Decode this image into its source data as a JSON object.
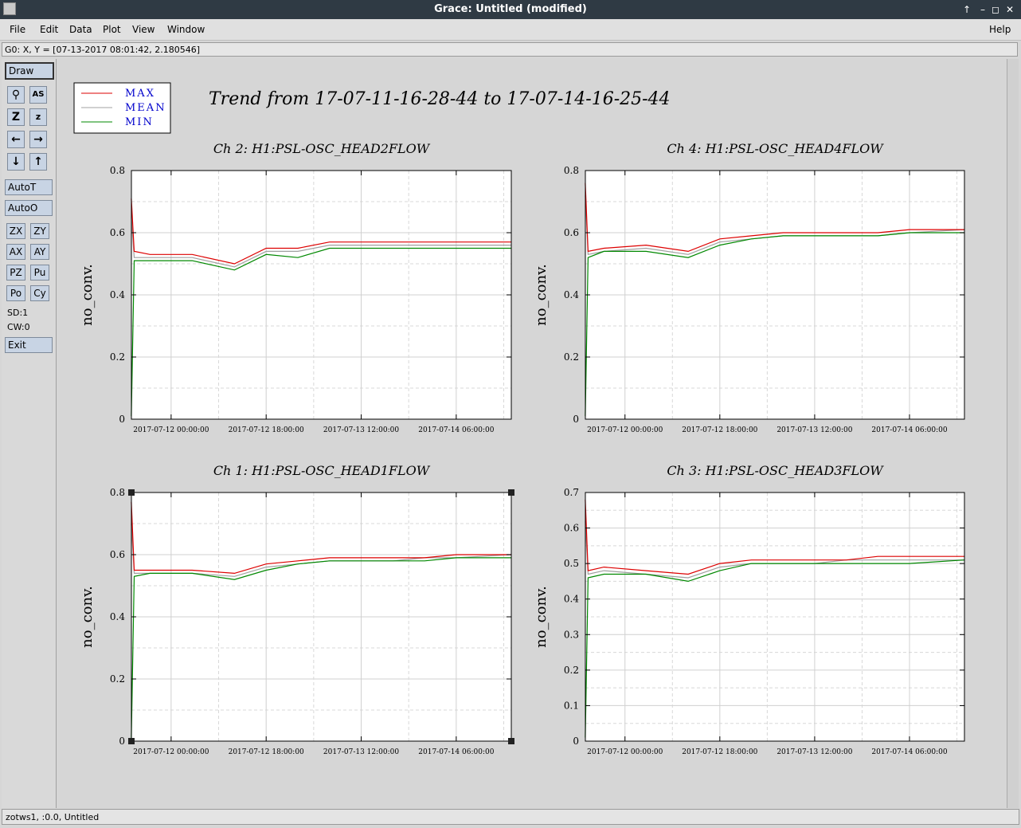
{
  "window": {
    "title": "Grace: Untitled (modified)",
    "controls": [
      "↑",
      "–",
      "◻",
      "✕"
    ]
  },
  "menubar": {
    "items": [
      {
        "label": "File"
      },
      {
        "label": "Edit"
      },
      {
        "label": "Data"
      },
      {
        "label": "Plot"
      },
      {
        "label": "View"
      },
      {
        "label": "Window"
      }
    ],
    "help": "Help"
  },
  "locator": "G0: X, Y = [07-13-2017 08:01:42, 2.180546]",
  "toolbar": {
    "draw": "Draw",
    "autot": "AutoT",
    "autoo": "AutoO",
    "zx": "ZX",
    "zy": "ZY",
    "ax": "AX",
    "ay": "AY",
    "pz": "PZ",
    "pu": "Pu",
    "po": "Po",
    "cy": "Cy",
    "sd": "SD:1",
    "cw": "CW:0",
    "exit": "Exit",
    "icons": [
      "zoom-icon",
      "autoscale-text-icon",
      "zoom-in-icon",
      "zoom-out-icon",
      "left-arrow-icon",
      "right-arrow-icon",
      "down-arrow-icon",
      "up-arrow-icon"
    ]
  },
  "statusbar": "zotws1, :0.0, Untitled",
  "canvas": {
    "title": "Trend from 17-07-11-16-28-44 to 17-07-14-16-25-44",
    "legend": [
      {
        "name": "MAX",
        "color": "#dd0000"
      },
      {
        "name": "MEAN",
        "color": "#a0a0a0"
      },
      {
        "name": "MIN",
        "color": "#008800"
      }
    ]
  },
  "chart_data": [
    {
      "type": "line",
      "title": "Ch 2: H1:PSL-OSC_HEAD2FLOW",
      "ylabel": "no_conv.",
      "ylim": [
        0,
        0.8
      ],
      "yticks": [
        "0",
        "0.2",
        "0.4",
        "0.6",
        "0.8"
      ],
      "xticks": [
        "2017-07-12 00:00:00",
        "2017-07-12 18:00:00",
        "2017-07-13 12:00:00",
        "2017-07-14 06:00:00"
      ],
      "x": [
        "2017-07-11 16:28",
        "2017-07-11 17:00",
        "2017-07-11 20:00",
        "2017-07-12 04:00",
        "2017-07-12 12:00",
        "2017-07-12 18:00",
        "2017-07-13 00:00",
        "2017-07-13 06:00",
        "2017-07-13 12:00",
        "2017-07-13 18:00",
        "2017-07-14 00:00",
        "2017-07-14 06:00",
        "2017-07-14 16:25"
      ],
      "series": [
        {
          "name": "MAX",
          "values": [
            0.71,
            0.54,
            0.53,
            0.53,
            0.5,
            0.55,
            0.55,
            0.57,
            0.57,
            0.57,
            0.57,
            0.57,
            0.57
          ]
        },
        {
          "name": "MEAN",
          "values": [
            0.65,
            0.52,
            0.52,
            0.52,
            0.49,
            0.54,
            0.54,
            0.56,
            0.56,
            0.56,
            0.56,
            0.56,
            0.56
          ]
        },
        {
          "name": "MIN",
          "values": [
            0.01,
            0.51,
            0.51,
            0.51,
            0.48,
            0.53,
            0.52,
            0.55,
            0.55,
            0.55,
            0.55,
            0.55,
            0.55
          ]
        }
      ]
    },
    {
      "type": "line",
      "title": "Ch 4: H1:PSL-OSC_HEAD4FLOW",
      "ylabel": "no_conv.",
      "ylim": [
        0,
        0.8
      ],
      "yticks": [
        "0",
        "0.2",
        "0.4",
        "0.6",
        "0.8"
      ],
      "xticks": [
        "2017-07-12 00:00:00",
        "2017-07-12 18:00:00",
        "2017-07-13 12:00:00",
        "2017-07-14 06:00:00"
      ],
      "x": [
        "2017-07-11 16:28",
        "2017-07-11 17:00",
        "2017-07-11 20:00",
        "2017-07-12 04:00",
        "2017-07-12 12:00",
        "2017-07-12 18:00",
        "2017-07-13 00:00",
        "2017-07-13 06:00",
        "2017-07-13 12:00",
        "2017-07-13 18:00",
        "2017-07-14 00:00",
        "2017-07-14 06:00",
        "2017-07-14 16:25"
      ],
      "series": [
        {
          "name": "MAX",
          "values": [
            0.76,
            0.54,
            0.55,
            0.56,
            0.54,
            0.58,
            0.59,
            0.6,
            0.6,
            0.6,
            0.6,
            0.61,
            0.61
          ]
        },
        {
          "name": "MEAN",
          "values": [
            0.72,
            0.53,
            0.54,
            0.55,
            0.53,
            0.57,
            0.58,
            0.59,
            0.59,
            0.59,
            0.59,
            0.6,
            0.61
          ]
        },
        {
          "name": "MIN",
          "values": [
            0.01,
            0.52,
            0.54,
            0.54,
            0.52,
            0.56,
            0.58,
            0.59,
            0.59,
            0.59,
            0.59,
            0.6,
            0.6
          ]
        }
      ]
    },
    {
      "type": "line",
      "title": "Ch 1: H1:PSL-OSC_HEAD1FLOW",
      "ylabel": "no_conv.",
      "ylim": [
        0,
        0.8
      ],
      "yticks": [
        "0",
        "0.2",
        "0.4",
        "0.6",
        "0.8"
      ],
      "xticks": [
        "2017-07-12 00:00:00",
        "2017-07-12 18:00:00",
        "2017-07-13 12:00:00",
        "2017-07-14 06:00:00"
      ],
      "x": [
        "2017-07-11 16:28",
        "2017-07-11 17:00",
        "2017-07-11 20:00",
        "2017-07-12 04:00",
        "2017-07-12 12:00",
        "2017-07-12 18:00",
        "2017-07-13 00:00",
        "2017-07-13 06:00",
        "2017-07-13 12:00",
        "2017-07-13 18:00",
        "2017-07-14 00:00",
        "2017-07-14 06:00",
        "2017-07-14 16:25"
      ],
      "series": [
        {
          "name": "MAX",
          "values": [
            0.77,
            0.55,
            0.55,
            0.55,
            0.54,
            0.57,
            0.58,
            0.59,
            0.59,
            0.59,
            0.59,
            0.6,
            0.6
          ]
        },
        {
          "name": "MEAN",
          "values": [
            0.7,
            0.54,
            0.54,
            0.54,
            0.53,
            0.56,
            0.57,
            0.58,
            0.58,
            0.58,
            0.59,
            0.59,
            0.6
          ]
        },
        {
          "name": "MIN",
          "values": [
            0.01,
            0.53,
            0.54,
            0.54,
            0.52,
            0.55,
            0.57,
            0.58,
            0.58,
            0.58,
            0.58,
            0.59,
            0.59
          ]
        }
      ]
    },
    {
      "type": "line",
      "title": "Ch 3: H1:PSL-OSC_HEAD3FLOW",
      "ylabel": "no_conv.",
      "ylim": [
        0,
        0.7
      ],
      "yticks": [
        "0",
        "0.1",
        "0.2",
        "0.3",
        "0.4",
        "0.5",
        "0.6",
        "0.7"
      ],
      "xticks": [
        "2017-07-12 00:00:00",
        "2017-07-12 18:00:00",
        "2017-07-13 12:00:00",
        "2017-07-14 06:00:00"
      ],
      "x": [
        "2017-07-11 16:28",
        "2017-07-11 17:00",
        "2017-07-11 20:00",
        "2017-07-12 04:00",
        "2017-07-12 12:00",
        "2017-07-12 18:00",
        "2017-07-13 00:00",
        "2017-07-13 06:00",
        "2017-07-13 12:00",
        "2017-07-13 18:00",
        "2017-07-14 00:00",
        "2017-07-14 06:00",
        "2017-07-14 16:25"
      ],
      "series": [
        {
          "name": "MAX",
          "values": [
            0.68,
            0.48,
            0.49,
            0.48,
            0.47,
            0.5,
            0.51,
            0.51,
            0.51,
            0.51,
            0.52,
            0.52,
            0.52
          ]
        },
        {
          "name": "MEAN",
          "values": [
            0.62,
            0.47,
            0.48,
            0.47,
            0.46,
            0.49,
            0.5,
            0.5,
            0.5,
            0.51,
            0.51,
            0.51,
            0.51
          ]
        },
        {
          "name": "MIN",
          "values": [
            0.01,
            0.46,
            0.47,
            0.47,
            0.45,
            0.48,
            0.5,
            0.5,
            0.5,
            0.5,
            0.5,
            0.5,
            0.51
          ]
        }
      ]
    }
  ]
}
